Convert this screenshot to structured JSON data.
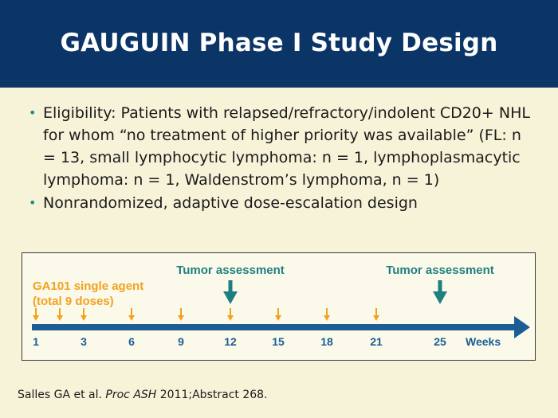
{
  "slide": {
    "title": "GAUGUIN Phase I Study Design",
    "bullets": [
      "Eligibility: Patients with relapsed/refractory/indolent CD20+ NHL for whom “no treatment of higher priority was available” (FL: n = 13, small lymphocytic lymphoma: n = 1, lymphoplasmacytic lymphoma: n = 1, Waldenstrom’s lymphoma, n = 1)",
      "Nonrandomized, adaptive dose-escalation design"
    ],
    "bullet_glyph": "•",
    "reference": {
      "authors": "Salles GA et al. ",
      "journal": "Proc ASH",
      "details": " 2011;Abstract 268."
    }
  },
  "timeline": {
    "agent_label_line1": "GA101 single agent",
    "agent_label_line2": "(total 9 doses)",
    "assessment_label": "Tumor assessment",
    "axis_unit_label": "Weeks",
    "ticks": [
      {
        "label": "1",
        "week": 1
      },
      {
        "label": "3",
        "week": 3
      },
      {
        "label": "6",
        "week": 6
      },
      {
        "label": "9",
        "week": 9
      },
      {
        "label": "12",
        "week": 12
      },
      {
        "label": "15",
        "week": 15
      },
      {
        "label": "18",
        "week": 18
      },
      {
        "label": "21",
        "week": 21
      },
      {
        "label": "25",
        "week": 25
      }
    ],
    "dose_weeks": [
      1,
      2,
      3,
      6,
      9,
      12,
      15,
      18,
      21
    ],
    "assessment_weeks": [
      12,
      25
    ],
    "colors": {
      "axis": "#1a5e94",
      "dose": "#f2a21e",
      "assessment": "#1f7f80",
      "header": "#0b3467",
      "background": "#f7f3d9"
    }
  }
}
